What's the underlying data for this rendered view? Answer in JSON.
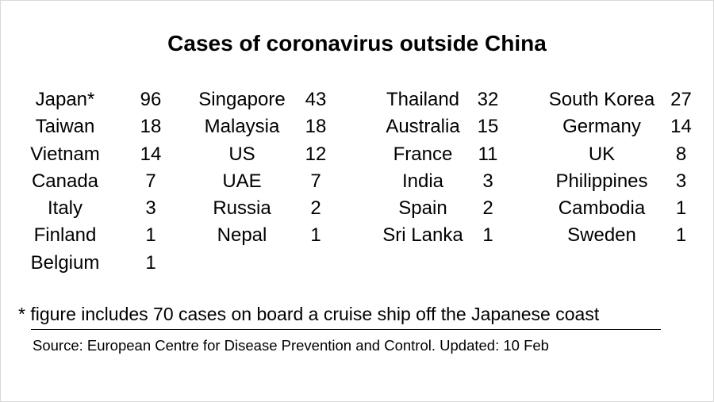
{
  "chart_data": {
    "type": "table",
    "title": "Cases of coronavirus outside China",
    "columns": [
      [
        {
          "country": "Japan*",
          "cases": 96
        },
        {
          "country": "Taiwan",
          "cases": 18
        },
        {
          "country": "Vietnam",
          "cases": 14
        },
        {
          "country": "Canada",
          "cases": 7
        },
        {
          "country": "Italy",
          "cases": 3
        },
        {
          "country": "Finland",
          "cases": 1
        },
        {
          "country": "Belgium",
          "cases": 1
        }
      ],
      [
        {
          "country": "Singapore",
          "cases": 43
        },
        {
          "country": "Malaysia",
          "cases": 18
        },
        {
          "country": "US",
          "cases": 12
        },
        {
          "country": "UAE",
          "cases": 7
        },
        {
          "country": "Russia",
          "cases": 2
        },
        {
          "country": "Nepal",
          "cases": 1
        }
      ],
      [
        {
          "country": "Thailand",
          "cases": 32
        },
        {
          "country": "Australia",
          "cases": 15
        },
        {
          "country": "France",
          "cases": 11
        },
        {
          "country": "India",
          "cases": 3
        },
        {
          "country": "Spain",
          "cases": 2
        },
        {
          "country": "Sri Lanka",
          "cases": 1
        }
      ],
      [
        {
          "country": "South Korea",
          "cases": 27
        },
        {
          "country": "Germany",
          "cases": 14
        },
        {
          "country": "UK",
          "cases": 8
        },
        {
          "country": "Philippines",
          "cases": 3
        },
        {
          "country": "Cambodia",
          "cases": 1
        },
        {
          "country": "Sweden",
          "cases": 1
        }
      ]
    ],
    "footnote": "* figure includes 70 cases on board a cruise ship off the Japanese coast",
    "source": "Source: European Centre for Disease Prevention and Control. Updated: 10 Feb"
  }
}
